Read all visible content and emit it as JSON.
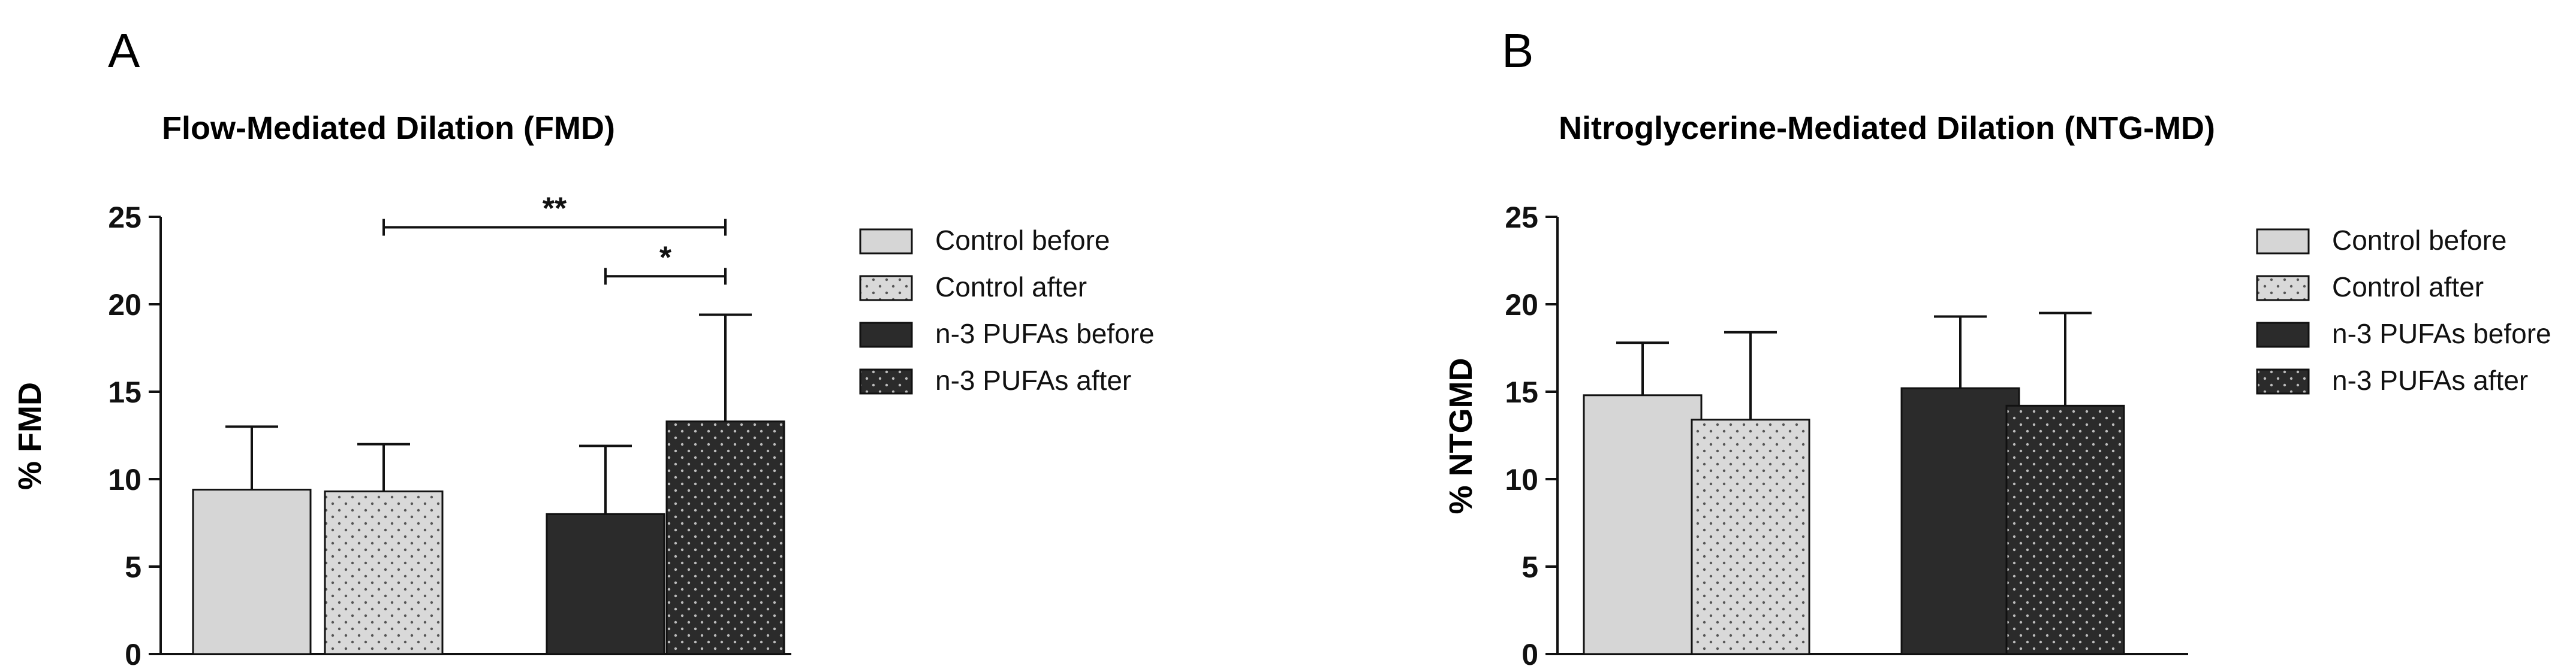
{
  "colors": {
    "control_before": "#d6d6d6",
    "control_after": "#d9d9d9",
    "n3_before": "#2b2b2b",
    "n3_after": "#2b2b2b",
    "stroke": "#111111"
  },
  "chart_data": [
    {
      "type": "bar",
      "panel_label": "A",
      "title": "Flow-Mediated Dilation (FMD)",
      "xlabel": "",
      "ylabel": "% FMD",
      "ylim": [
        0,
        25
      ],
      "yticks": [
        0,
        5,
        10,
        15,
        20,
        25
      ],
      "legend_position": "right",
      "series": [
        {
          "name": "Control before",
          "value": 9.4,
          "error": 3.6,
          "pattern": "solid-light"
        },
        {
          "name": "Control after",
          "value": 9.3,
          "error": 2.7,
          "pattern": "dots-light"
        },
        {
          "name": "n-3 PUFAs before",
          "value": 8.0,
          "error": 3.9,
          "pattern": "solid-dark"
        },
        {
          "name": "n-3 PUFAs after",
          "value": 13.3,
          "error": 6.1,
          "pattern": "dots-dark"
        }
      ],
      "significance": [
        {
          "from": 1,
          "to": 3,
          "label": "**",
          "y": 24.4
        },
        {
          "from": 2,
          "to": 3,
          "label": "*",
          "y": 21.6
        }
      ]
    },
    {
      "type": "bar",
      "panel_label": "B",
      "title": "Nitroglycerine-Mediated Dilation (NTG-MD)",
      "xlabel": "",
      "ylabel": "% NTGMD",
      "ylim": [
        0,
        25
      ],
      "yticks": [
        0,
        5,
        10,
        15,
        20,
        25
      ],
      "legend_position": "right",
      "series": [
        {
          "name": "Control before",
          "value": 14.8,
          "error": 3.0,
          "pattern": "solid-light"
        },
        {
          "name": "Control after",
          "value": 13.4,
          "error": 5.0,
          "pattern": "dots-light"
        },
        {
          "name": "n-3 PUFAs before",
          "value": 15.2,
          "error": 4.1,
          "pattern": "solid-dark"
        },
        {
          "name": "n-3 PUFAs after",
          "value": 14.2,
          "error": 5.3,
          "pattern": "dots-dark"
        }
      ],
      "significance": []
    }
  ]
}
